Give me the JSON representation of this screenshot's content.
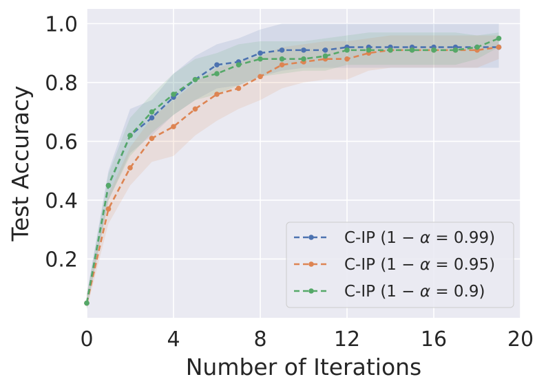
{
  "chart_data": {
    "type": "line",
    "title": "",
    "xlabel": "Number of Iterations",
    "ylabel": "Test Accuracy",
    "xlim": [
      0,
      20
    ],
    "ylim": [
      0.0,
      1.05
    ],
    "xticks": [
      0,
      4,
      8,
      12,
      16,
      20
    ],
    "xtick_labels": [
      "0",
      "4",
      "8",
      "12",
      "16",
      "20"
    ],
    "yticks": [
      0.2,
      0.4,
      0.6,
      0.8,
      1.0
    ],
    "ytick_labels": [
      "0.2",
      "0.4",
      "0.6",
      "0.8",
      "1.0"
    ],
    "grid": true,
    "legend_position": "lower-right",
    "x": [
      0,
      1,
      2,
      3,
      4,
      5,
      6,
      7,
      8,
      9,
      10,
      11,
      12,
      13,
      14,
      15,
      16,
      17,
      18,
      19
    ],
    "series": [
      {
        "name": "C-IP (1 − α = 0.99)",
        "name_plain": "C-IP (",
        "expr_one": "1",
        "expr_minus": "−",
        "expr_alpha": "α",
        "expr_eq": "=",
        "expr_value": "0.99",
        "expr_close": ")",
        "color": "#4c72b0",
        "values": [
          0.05,
          0.45,
          0.62,
          0.68,
          0.75,
          0.81,
          0.86,
          0.87,
          0.9,
          0.91,
          0.91,
          0.91,
          0.92,
          0.92,
          0.92,
          0.92,
          0.92,
          0.92,
          0.92,
          0.92
        ],
        "lower": [
          0.03,
          0.4,
          0.56,
          0.62,
          0.69,
          0.74,
          0.78,
          0.79,
          0.82,
          0.84,
          0.85,
          0.85,
          0.85,
          0.85,
          0.85,
          0.85,
          0.85,
          0.85,
          0.85,
          0.85
        ],
        "upper": [
          0.08,
          0.5,
          0.71,
          0.74,
          0.83,
          0.89,
          0.93,
          0.95,
          0.98,
          1.0,
          1.0,
          1.0,
          1.0,
          1.0,
          1.0,
          1.0,
          1.0,
          1.0,
          1.0,
          1.0
        ]
      },
      {
        "name": "C-IP (1 − α = 0.95)",
        "name_plain": "C-IP (",
        "expr_one": "1",
        "expr_minus": "−",
        "expr_alpha": "α",
        "expr_eq": "=",
        "expr_value": "0.95",
        "expr_close": ")",
        "color": "#dd8452",
        "values": [
          0.05,
          0.37,
          0.51,
          0.61,
          0.65,
          0.71,
          0.76,
          0.78,
          0.82,
          0.86,
          0.87,
          0.88,
          0.88,
          0.9,
          0.91,
          0.91,
          0.91,
          0.91,
          0.91,
          0.92
        ],
        "lower": [
          0.03,
          0.32,
          0.45,
          0.53,
          0.55,
          0.62,
          0.67,
          0.71,
          0.74,
          0.78,
          0.8,
          0.81,
          0.81,
          0.84,
          0.85,
          0.85,
          0.85,
          0.85,
          0.85,
          0.88
        ],
        "upper": [
          0.08,
          0.42,
          0.58,
          0.68,
          0.74,
          0.8,
          0.85,
          0.87,
          0.89,
          0.92,
          0.93,
          0.94,
          0.94,
          0.95,
          0.96,
          0.96,
          0.96,
          0.96,
          0.96,
          0.96
        ]
      },
      {
        "name": "C-IP (1 − α = 0.9)",
        "name_plain": "C-IP (",
        "expr_one": "1",
        "expr_minus": "−",
        "expr_alpha": "α",
        "expr_eq": "=",
        "expr_value": "0.9",
        "expr_close": ")",
        "color": "#55a868",
        "values": [
          0.05,
          0.45,
          0.62,
          0.7,
          0.76,
          0.81,
          0.83,
          0.86,
          0.88,
          0.88,
          0.88,
          0.89,
          0.91,
          0.91,
          0.91,
          0.91,
          0.91,
          0.91,
          0.92,
          0.95
        ],
        "lower": [
          0.03,
          0.4,
          0.55,
          0.63,
          0.69,
          0.74,
          0.76,
          0.79,
          0.82,
          0.83,
          0.84,
          0.84,
          0.86,
          0.86,
          0.86,
          0.86,
          0.86,
          0.86,
          0.88,
          0.92
        ],
        "upper": [
          0.08,
          0.49,
          0.68,
          0.76,
          0.83,
          0.88,
          0.9,
          0.93,
          0.94,
          0.94,
          0.94,
          0.95,
          0.96,
          0.97,
          0.97,
          0.97,
          0.97,
          0.97,
          0.96,
          0.97
        ]
      }
    ]
  }
}
